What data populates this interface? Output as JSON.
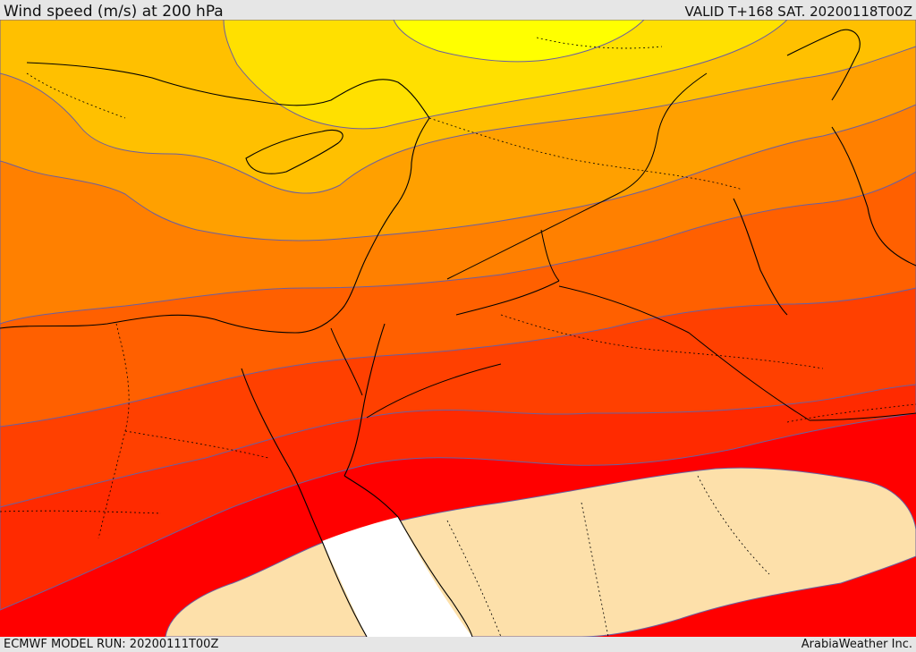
{
  "header": {
    "title": "Wind speed (m/s) at 200 hPa",
    "valid": "VALID T+168 SAT. 20200118T00Z"
  },
  "footer": {
    "model_run": "ECMWF MODEL RUN: 20200111T00Z",
    "credit": "ArabiaWeather Inc."
  },
  "colors": {
    "band_yellow": "#ffff00",
    "band_gold": "#ffe000",
    "band_amber": "#ffc000",
    "band_orange_light": "#ffa000",
    "band_orange": "#ff8000",
    "band_orange_dark": "#ff6000",
    "band_red_orange": "#ff4000",
    "band_red_light": "#ff2a00",
    "band_red": "#ff0000",
    "low_wind_land": "#fde0aa",
    "no_data": "#ffffff",
    "contour_line": "#6b5fa0",
    "coastline": "#000000"
  }
}
